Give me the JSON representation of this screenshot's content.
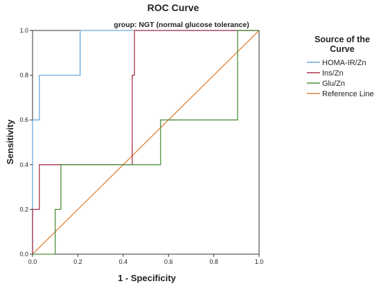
{
  "chart_data": {
    "type": "line",
    "title": "ROC Curve",
    "subtitle": "group: NGT (normal glucose tolerance)",
    "xlabel": "1 - Specificity",
    "ylabel": "Sensitivity",
    "xlim": [
      0,
      1
    ],
    "ylim": [
      0,
      1
    ],
    "x_ticks": [
      "0.0",
      "0.2",
      "0.4",
      "0.6",
      "0.8",
      "1.0"
    ],
    "y_ticks": [
      "0.0",
      "0.2",
      "0.4",
      "0.6",
      "0.8",
      "1.0"
    ],
    "grid": false,
    "legend": {
      "title_lines": [
        "Source of the",
        "Curve"
      ],
      "position": "right"
    },
    "series": [
      {
        "name": "HOMA-IR/Zn",
        "color": "#6aa8dc",
        "points": [
          [
            0,
            0
          ],
          [
            0,
            0.6
          ],
          [
            0.03,
            0.6
          ],
          [
            0.03,
            0.8
          ],
          [
            0.21,
            0.8
          ],
          [
            0.21,
            1.0
          ],
          [
            1.0,
            1.0
          ]
        ]
      },
      {
        "name": "Ins/Zn",
        "color": "#a8324a",
        "points": [
          [
            0,
            0
          ],
          [
            0,
            0.2
          ],
          [
            0.03,
            0.2
          ],
          [
            0.03,
            0.4
          ],
          [
            0.44,
            0.4
          ],
          [
            0.44,
            0.8
          ],
          [
            0.45,
            0.8
          ],
          [
            0.45,
            1.0
          ],
          [
            1.0,
            1.0
          ]
        ]
      },
      {
        "name": "Glu/Zn",
        "color": "#4e8f3a",
        "points": [
          [
            0,
            0
          ],
          [
            0.1,
            0
          ],
          [
            0.1,
            0.2
          ],
          [
            0.125,
            0.2
          ],
          [
            0.125,
            0.4
          ],
          [
            0.565,
            0.4
          ],
          [
            0.565,
            0.6
          ],
          [
            0.905,
            0.6
          ],
          [
            0.905,
            1.0
          ],
          [
            1.0,
            1.0
          ]
        ]
      },
      {
        "name": "Reference Line",
        "color": "#e0843a",
        "points": [
          [
            0,
            0
          ],
          [
            1,
            1
          ]
        ]
      }
    ]
  }
}
